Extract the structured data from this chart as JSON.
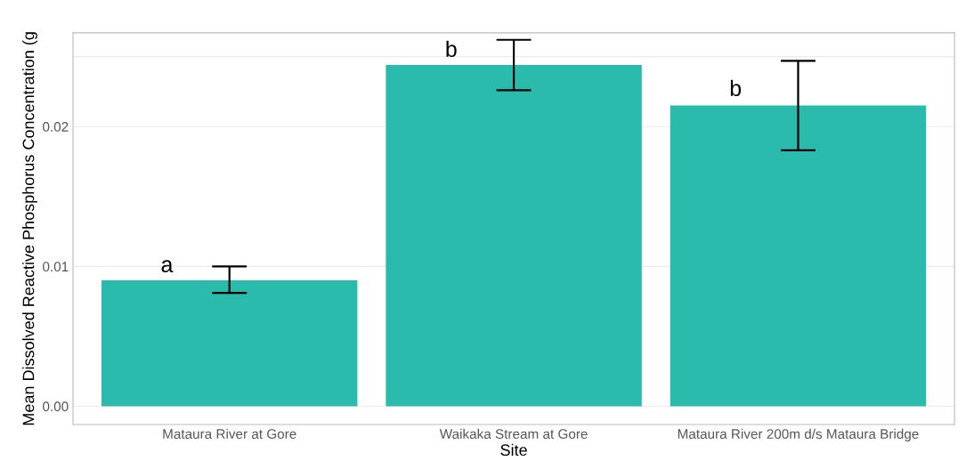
{
  "chart_data": {
    "type": "bar",
    "xlabel": "Site",
    "ylabel": "Mean Dissolved Reactive Phosphorus Concentration (g",
    "categories": [
      "Mataura River at Gore",
      "Waikaka Stream at Gore",
      "Mataura River 200m d/s Mataura Bridge"
    ],
    "values": [
      0.009,
      0.0244,
      0.0215
    ],
    "errors": [
      [
        0.0081,
        0.01
      ],
      [
        0.0226,
        0.0262
      ],
      [
        0.0183,
        0.0247
      ]
    ],
    "color": "#2bbbad",
    "ylim": [
      -0.0013,
      0.0267
    ],
    "yticks": [
      {
        "value": 0,
        "label": "0.00"
      },
      {
        "value": 0.01,
        "label": "0.01"
      },
      {
        "value": 0.02,
        "label": "0.02"
      },
      {
        "value": 0.025,
        "label": null
      }
    ],
    "grid": "y",
    "annotations": [
      {
        "text": "a",
        "x": "Mataura River at Gore",
        "y": 0.01
      },
      {
        "text": "b",
        "x": "Waikaka Stream at Gore",
        "y": 0.0254
      },
      {
        "text": "b",
        "x": "Mataura River 200m d/s Mataura Bridge",
        "y": 0.0226
      }
    ]
  }
}
